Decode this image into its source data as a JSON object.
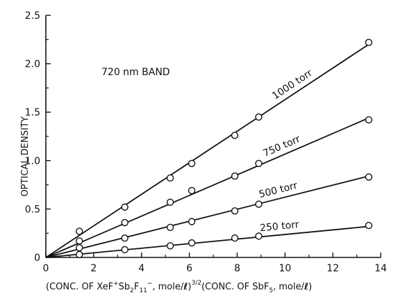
{
  "chart_data": {
    "type": "scatter",
    "xlim": [
      0,
      14
    ],
    "ylim": [
      0,
      2.5
    ],
    "x_ticks": [
      0,
      2,
      4,
      6,
      8,
      10,
      12,
      14
    ],
    "y_ticks": [
      0,
      0.5,
      1.0,
      1.5,
      2.0,
      2.5
    ],
    "x_tick_labels": [
      "0",
      "2",
      "4",
      "6",
      "8",
      "10",
      "12",
      "14"
    ],
    "y_tick_labels": [
      "0",
      "0.5",
      "1.0",
      "1.5",
      "2.0",
      "2.5"
    ],
    "ylabel": "OPTICAL DENSITY",
    "xlabel": {
      "p1": "(CONC. OF XeF",
      "p1_sup": "+",
      "p2": "Sb",
      "p2_sub": "2",
      "p3": "F",
      "p3_sub": "11",
      "p3_sup": "−",
      "p4": ", mole/",
      "p4_l": "ℓ",
      "p5": ")",
      "p5_sup": "3/2",
      "p6": "(CONC. OF SbF",
      "p6_sub": "5",
      "p7": ", mole/",
      "p7_l": "ℓ",
      "p8": ")"
    },
    "annotation": "720 nm BAND",
    "grid": false,
    "series": [
      {
        "name": "1000 torr",
        "x": [
          1.4,
          3.3,
          5.2,
          6.1,
          7.9,
          8.9,
          13.5
        ],
        "y": [
          0.27,
          0.52,
          0.82,
          0.97,
          1.26,
          1.45,
          2.22
        ],
        "fit_end": [
          13.5,
          2.2
        ]
      },
      {
        "name": "750 torr",
        "x": [
          1.4,
          3.3,
          5.2,
          6.1,
          7.9,
          8.9,
          13.5
        ],
        "y": [
          0.17,
          0.36,
          0.57,
          0.69,
          0.84,
          0.97,
          1.42
        ],
        "fit_end": [
          13.5,
          1.44
        ]
      },
      {
        "name": "500 torr",
        "x": [
          1.4,
          3.3,
          5.2,
          6.1,
          7.9,
          8.9,
          13.5
        ],
        "y": [
          0.1,
          0.2,
          0.31,
          0.37,
          0.48,
          0.55,
          0.83
        ],
        "fit_end": [
          13.5,
          0.84
        ]
      },
      {
        "name": "250 torr",
        "x": [
          1.4,
          3.3,
          5.2,
          6.1,
          7.9,
          8.9,
          13.5
        ],
        "y": [
          0.03,
          0.08,
          0.12,
          0.15,
          0.2,
          0.22,
          0.33
        ],
        "fit_end": [
          13.5,
          0.32
        ]
      }
    ]
  }
}
